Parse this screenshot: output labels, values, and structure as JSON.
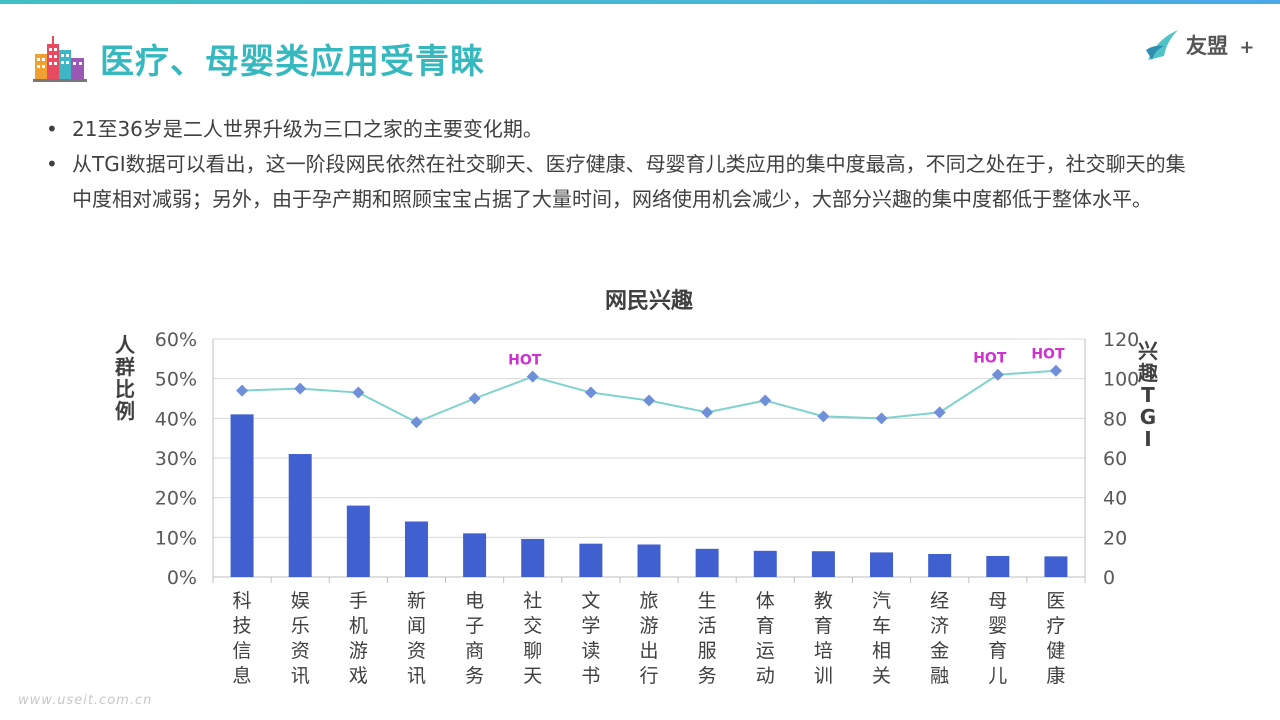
{
  "header": {
    "title": "医疗、母婴类应用受青睐",
    "icon": "city-buildings-icon",
    "logo_text": "友盟",
    "logo_plus": "+",
    "logo_icon": "umeng-bird-icon"
  },
  "bullets": [
    "21至36岁是二人世界升级为三口之家的主要变化期。",
    "从TGI数据可以看出，这一阶段网民依然在社交聊天、医疗健康、母婴育儿类应用的集中度最高，不同之处在于，社交聊天的集中度相对减弱；另外，由于孕产期和照顾宝宝占据了大量时间，网络使用机会减少，大部分兴趣的集中度都低于整体水平。"
  ],
  "bullet_marker": "•",
  "colors": {
    "accent": "#35b8be",
    "bar": "#4060d0",
    "line": "#7fd3cc",
    "marker": "#6f8fd8",
    "hot": "#d030d0"
  },
  "chart_data": {
    "type": "bar",
    "title": "网民兴趣",
    "ylabel": "人群比例",
    "y2label": "兴趣TGI",
    "categories": [
      "科技信息",
      "娱乐资讯",
      "手机游戏",
      "新闻资讯",
      "电子商务",
      "社交聊天",
      "文学读书",
      "旅游出行",
      "生活服务",
      "体育运动",
      "教育培训",
      "汽车相关",
      "经济金融",
      "母婴育儿",
      "医疗健康"
    ],
    "ylim": [
      0,
      60
    ],
    "yticks": [
      "0%",
      "10%",
      "20%",
      "30%",
      "40%",
      "50%",
      "60%"
    ],
    "y2lim": [
      0,
      120
    ],
    "y2ticks": [
      "0",
      "20",
      "40",
      "60",
      "80",
      "100",
      "120"
    ],
    "grid": true,
    "series": [
      {
        "type": "bar",
        "axis": "left",
        "values": [
          41,
          31,
          18,
          14,
          11,
          9.6,
          8.4,
          8.2,
          7.1,
          6.6,
          6.5,
          6.2,
          5.8,
          5.3,
          5.2
        ]
      },
      {
        "type": "line",
        "axis": "right",
        "values": [
          94,
          95,
          93,
          78,
          90,
          101,
          93,
          89,
          83,
          89,
          81,
          80,
          83,
          102,
          104
        ]
      }
    ],
    "annotations": [
      {
        "label": "HOT",
        "category": "社交聊天"
      },
      {
        "label": "HOT",
        "category": "母婴育儿"
      },
      {
        "label": "HOT",
        "category": "医疗健康"
      }
    ]
  },
  "watermark": "www.useit.com.cn"
}
